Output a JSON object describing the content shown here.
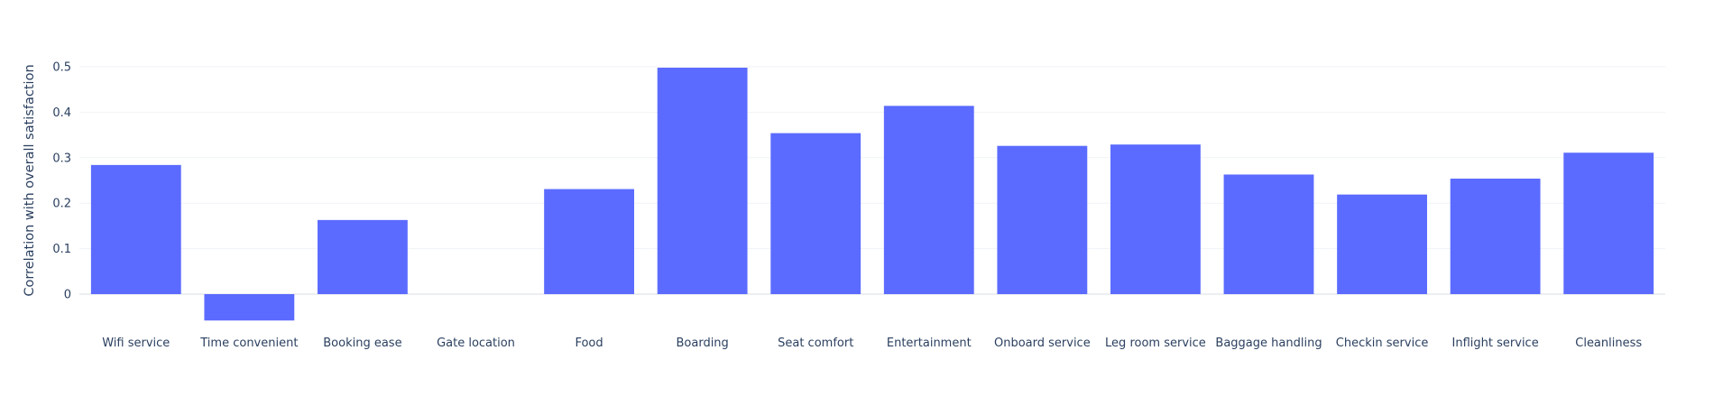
{
  "chart_data": {
    "type": "bar",
    "title": "",
    "xlabel": "",
    "ylabel": "Correlation with overall satisfaction",
    "categories": [
      "Wifi service",
      "Time convenient",
      "Booking ease",
      "Gate location",
      "Food",
      "Boarding",
      "Seat comfort",
      "Entertainment",
      "Onboard service",
      "Leg room service",
      "Baggage handling",
      "Checkin service",
      "Inflight service",
      "Cleanliness"
    ],
    "values": [
      0.284,
      -0.058,
      0.163,
      0.0,
      0.231,
      0.498,
      0.354,
      0.414,
      0.326,
      0.329,
      0.263,
      0.219,
      0.254,
      0.311
    ],
    "ylim": [
      -0.065,
      0.52
    ],
    "yticks": [
      0,
      0.1,
      0.2,
      0.3,
      0.4,
      0.5
    ],
    "grid": true,
    "bar_color": "#5b6bff",
    "legend": "none"
  }
}
